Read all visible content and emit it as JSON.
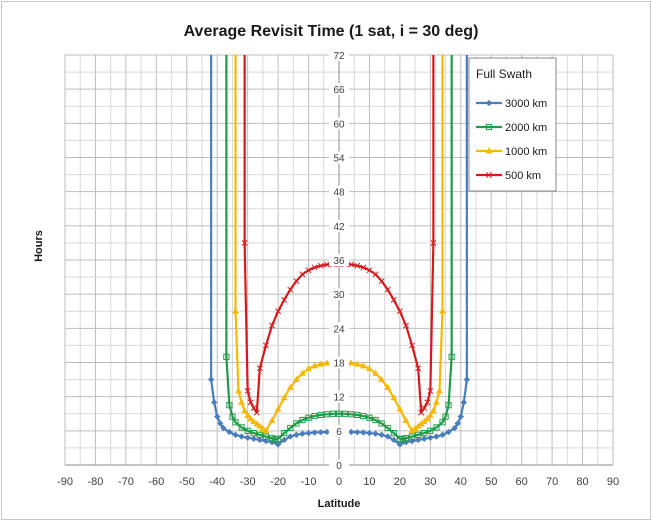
{
  "chart_data": {
    "type": "line",
    "title": "Average Revisit Time (1 sat, i = 30 deg)",
    "xlabel": "Latitude",
    "ylabel": "Hours",
    "xlim": [
      -90,
      90
    ],
    "ylim": [
      0,
      72
    ],
    "xticks": [
      -90,
      -80,
      -70,
      -60,
      -50,
      -40,
      -30,
      -20,
      -10,
      0,
      10,
      20,
      30,
      40,
      50,
      60,
      70,
      80,
      90
    ],
    "yticks": [
      0,
      6,
      12,
      18,
      24,
      30,
      36,
      42,
      48,
      54,
      60,
      66,
      72
    ],
    "grid": true,
    "legend": {
      "title": "Full Swath",
      "position": "top-right"
    },
    "series": [
      {
        "name": "3000 km",
        "color": "#4a7ebb",
        "marker": "diamond",
        "x": [
          -42,
          -41,
          -40,
          -39,
          -38,
          -36,
          -34,
          -32,
          -30,
          -28,
          -26,
          -24,
          -22,
          -20,
          -18,
          -16,
          -14,
          -12,
          -10,
          -8,
          -6,
          -4,
          -2,
          0,
          2,
          4,
          6,
          8,
          10,
          12,
          14,
          16,
          18,
          20,
          22,
          24,
          26,
          28,
          30,
          32,
          34,
          36,
          38,
          39,
          40,
          41,
          42
        ],
        "y": [
          15,
          11,
          8.5,
          7.3,
          6.5,
          5.8,
          5.3,
          5.0,
          4.8,
          4.6,
          4.4,
          4.2,
          4.0,
          3.6,
          4.4,
          5.0,
          5.3,
          5.5,
          5.6,
          5.7,
          5.75,
          5.8,
          5.8,
          5.8,
          5.8,
          5.8,
          5.75,
          5.7,
          5.6,
          5.5,
          5.3,
          5.0,
          4.4,
          3.6,
          4.0,
          4.2,
          4.4,
          4.6,
          4.8,
          5.0,
          5.3,
          5.8,
          6.5,
          7.3,
          8.5,
          11,
          15
        ]
      },
      {
        "name": "2000 km",
        "color": "#1e9a48",
        "marker": "square",
        "x": [
          -37,
          -36,
          -35,
          -34,
          -32,
          -30,
          -28,
          -26,
          -24,
          -22,
          -21,
          -20,
          -18,
          -16,
          -14,
          -12,
          -10,
          -8,
          -6,
          -4,
          -2,
          0,
          2,
          4,
          6,
          8,
          10,
          12,
          14,
          16,
          18,
          20,
          21,
          22,
          24,
          26,
          28,
          30,
          32,
          34,
          35,
          36,
          37
        ],
        "y": [
          19,
          10.5,
          8.5,
          7.5,
          6.6,
          6.0,
          5.6,
          5.3,
          5.0,
          4.7,
          4.5,
          4.6,
          5.6,
          6.5,
          7.3,
          7.9,
          8.3,
          8.6,
          8.8,
          8.9,
          9.0,
          9.0,
          9.0,
          8.9,
          8.8,
          8.6,
          8.3,
          7.9,
          7.3,
          6.5,
          5.6,
          4.6,
          4.5,
          4.7,
          5.0,
          5.3,
          5.6,
          6.0,
          6.6,
          7.5,
          8.5,
          10.5,
          19
        ]
      },
      {
        "name": "1000 km",
        "color": "#f6b800",
        "marker": "triangle",
        "x": [
          -34,
          -33,
          -32,
          -31,
          -30,
          -29,
          -28,
          -27,
          -26,
          -25,
          -24,
          -22,
          -20,
          -18,
          -16,
          -14,
          -12,
          -10,
          -8,
          -6,
          -4,
          -2,
          0,
          2,
          4,
          6,
          8,
          10,
          12,
          14,
          16,
          18,
          20,
          22,
          24,
          25,
          26,
          27,
          28,
          29,
          30,
          31,
          32,
          33,
          34
        ],
        "y": [
          27,
          13,
          11,
          9.5,
          8.7,
          8.1,
          7.6,
          7.2,
          6.8,
          6.4,
          6.0,
          7.8,
          9.8,
          11.8,
          13.6,
          15.0,
          16.1,
          16.9,
          17.4,
          17.7,
          17.9,
          18.0,
          18.0,
          18.0,
          17.9,
          17.7,
          17.4,
          16.9,
          16.1,
          15.0,
          13.6,
          11.8,
          9.8,
          7.8,
          6.0,
          6.4,
          6.8,
          7.2,
          7.6,
          8.1,
          8.7,
          9.5,
          11,
          13,
          27
        ]
      },
      {
        "name": "500 km",
        "color": "#d7191c",
        "marker": "x",
        "x": [
          -31,
          -30,
          -29,
          -28,
          -27,
          -26,
          -24,
          -22,
          -20,
          -18,
          -16,
          -14,
          -12,
          -10,
          -8,
          -6,
          -4,
          -2,
          0,
          2,
          4,
          6,
          8,
          10,
          12,
          14,
          16,
          18,
          20,
          22,
          24,
          26,
          27,
          28,
          29,
          30,
          31
        ],
        "y": [
          39,
          13,
          11,
          10,
          9.2,
          17,
          21,
          24.5,
          27,
          29,
          30.8,
          32.3,
          33.5,
          34.2,
          34.7,
          35.0,
          35.2,
          35.3,
          35.3,
          35.3,
          35.2,
          35.0,
          34.7,
          34.2,
          33.5,
          32.3,
          30.8,
          29,
          27,
          24.5,
          21,
          17,
          9.2,
          10,
          11,
          13,
          39
        ]
      }
    ]
  }
}
